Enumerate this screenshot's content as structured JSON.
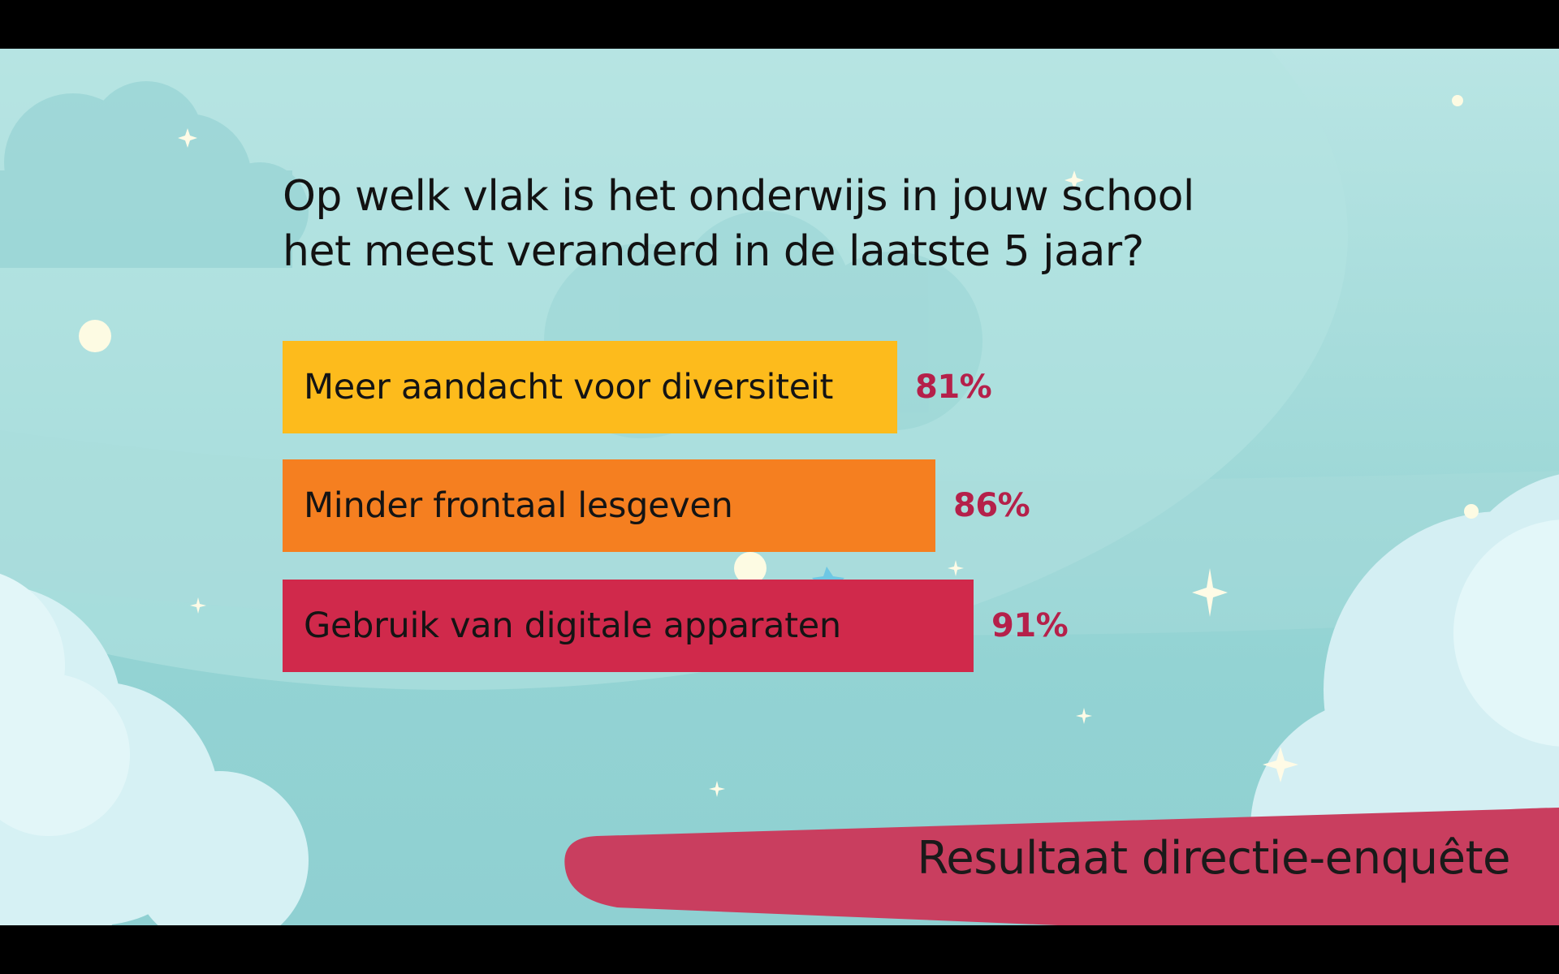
{
  "question": {
    "line1": "Op welk vlak is het onderwijs in jouw school",
    "line2": "het meest veranderd in de laatste 5 jaar?"
  },
  "chart_data": {
    "type": "bar",
    "orientation": "horizontal",
    "title": "Op welk vlak is het onderwijs in jouw school het meest veranderd in de laatste 5 jaar?",
    "categories": [
      "Meer aandacht voor diversiteit",
      "Minder frontaal lesgeven",
      "Gebruik van digitale apparaten"
    ],
    "values": [
      81,
      86,
      91
    ],
    "value_labels": [
      "81%",
      "86%",
      "91%"
    ],
    "colors": [
      "#fdbb1c",
      "#f57f20",
      "#d0294b"
    ],
    "unit": "%",
    "grid": false,
    "legend": "none"
  },
  "banner": {
    "text": "Resultaat directie-enquête",
    "color": "#c93e5f"
  },
  "colors": {
    "label_value": "#b5204a",
    "background": "#a6dcdb"
  }
}
